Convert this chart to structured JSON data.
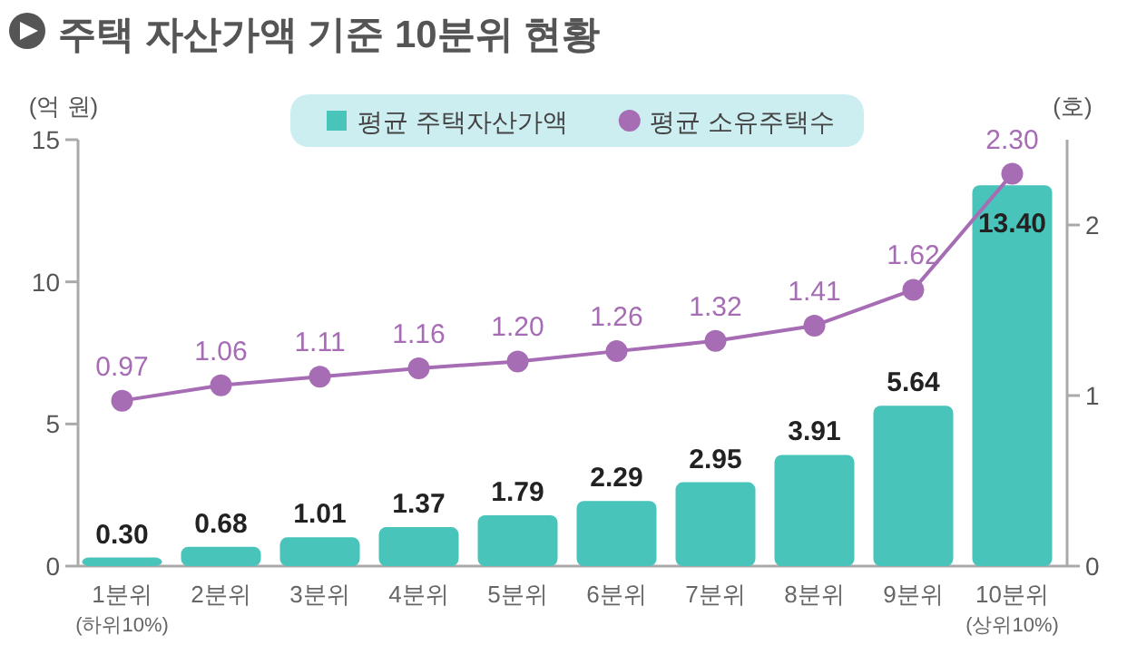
{
  "chart_data": {
    "type": "bar",
    "title": "주택 자산가액 기준 10분위 현황",
    "categories": [
      "1분위\n(하위10%)",
      "2분위",
      "3분위",
      "4분위",
      "5분위",
      "6분위",
      "7분위",
      "8분위",
      "9분위",
      "10분위\n(상위10%)"
    ],
    "series": [
      {
        "name": "평균 주택자산가액",
        "color": "#48c4bb",
        "values": [
          0.3,
          0.68,
          1.01,
          1.37,
          1.79,
          2.29,
          2.95,
          3.91,
          5.64,
          13.4
        ],
        "value_labels": [
          "0.30",
          "0.68",
          "1.01",
          "1.37",
          "1.79",
          "2.29",
          "2.95",
          "3.91",
          "5.64",
          "13.40"
        ]
      },
      {
        "name": "평균 소유주택수",
        "type": "line",
        "axis": "y2",
        "color": "#a66cb4",
        "values": [
          0.97,
          1.06,
          1.11,
          1.16,
          1.2,
          1.26,
          1.32,
          1.41,
          1.62,
          2.3
        ],
        "value_labels": [
          "0.97",
          "1.06",
          "1.11",
          "1.16",
          "1.20",
          "1.26",
          "1.32",
          "1.41",
          "1.62",
          "2.30"
        ]
      }
    ],
    "ylabel": "(억 원)",
    "y2label": "(호)",
    "ylim": [
      0,
      15
    ],
    "yticks": [
      0,
      5,
      10,
      15
    ],
    "y2lim": [
      0,
      2.5
    ],
    "y2ticks": [
      0,
      1,
      2
    ],
    "legend": "top",
    "marker": "circle",
    "grid": false
  }
}
